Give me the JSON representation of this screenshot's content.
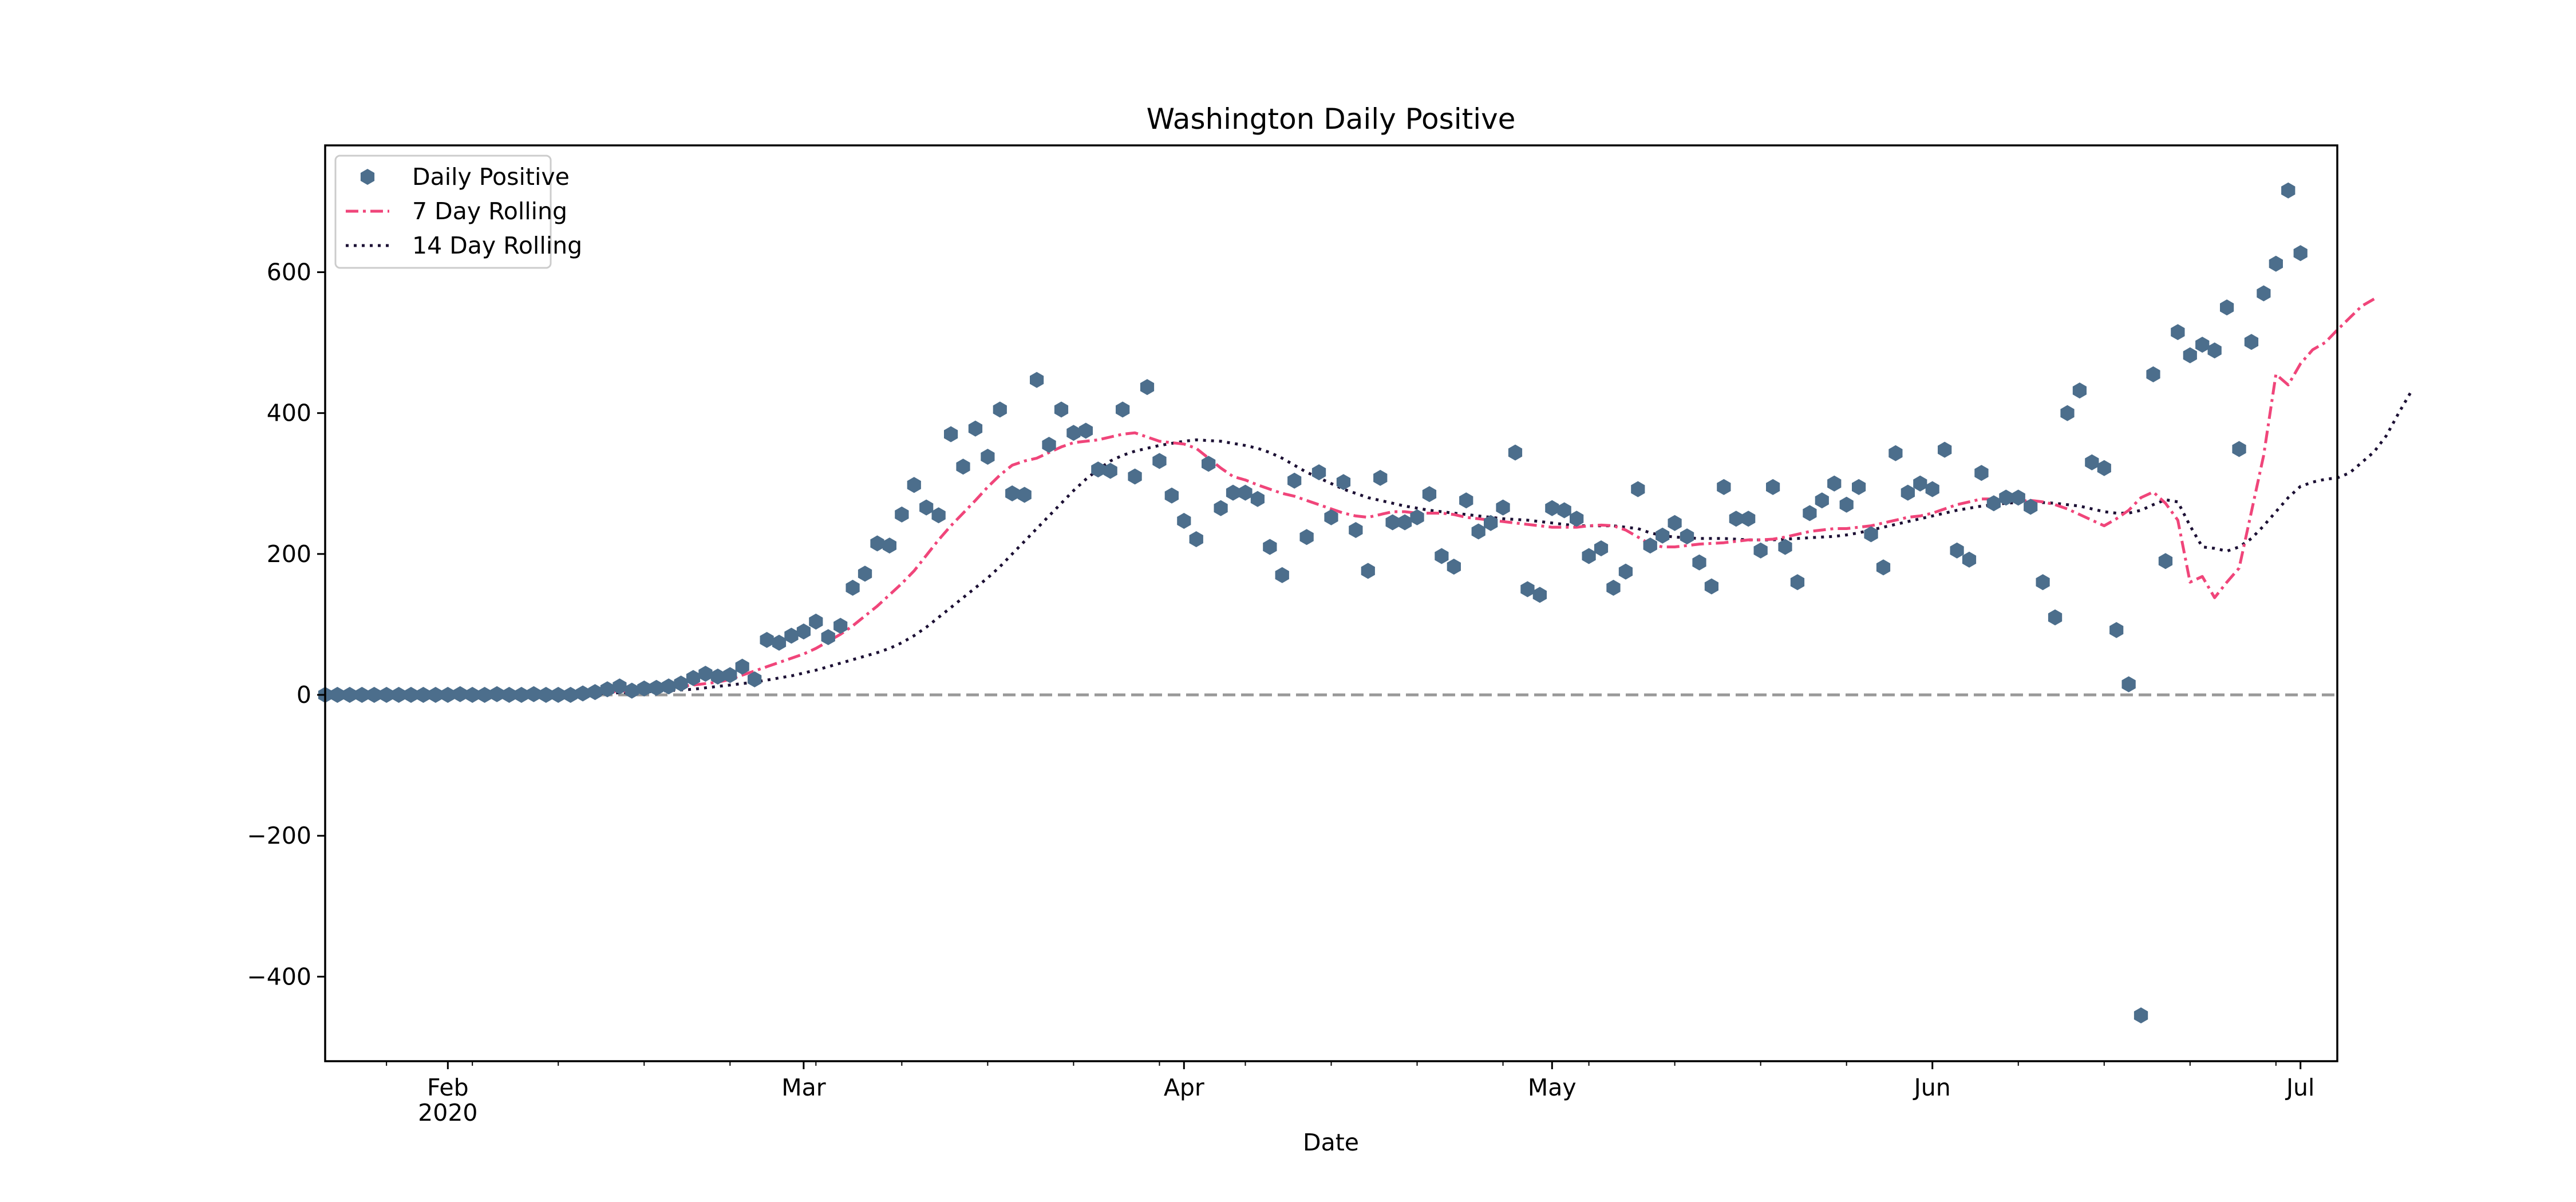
{
  "chart_data": {
    "type": "scatter",
    "title": "Washington Daily Positive",
    "xlabel": "Date",
    "ylabel": "",
    "xlim": [
      "2020-01-22",
      "2020-07-04"
    ],
    "ylim": [
      -520,
      780
    ],
    "x_ticks": [
      {
        "date": "2020-02-01",
        "label": "Feb",
        "sublabel": "2020"
      },
      {
        "date": "2020-03-01",
        "label": "Mar",
        "sublabel": ""
      },
      {
        "date": "2020-04-01",
        "label": "Apr",
        "sublabel": ""
      },
      {
        "date": "2020-05-01",
        "label": "May",
        "sublabel": ""
      },
      {
        "date": "2020-06-01",
        "label": "Jun",
        "sublabel": ""
      },
      {
        "date": "2020-07-01",
        "label": "Jul",
        "sublabel": ""
      }
    ],
    "y_ticks": [
      {
        "value": -400,
        "label": "−400"
      },
      {
        "value": -200,
        "label": "−200"
      },
      {
        "value": 0,
        "label": "0"
      },
      {
        "value": 200,
        "label": "200"
      },
      {
        "value": 400,
        "label": "400"
      },
      {
        "value": 600,
        "label": "600"
      }
    ],
    "zero_line": {
      "value": 0,
      "color": "#999999",
      "style": "dashed"
    },
    "grid": false,
    "legend_position": "upper-left",
    "series": [
      {
        "name": "Daily Positive",
        "kind": "points",
        "marker": "hexagon",
        "color": "#4c6e8c",
        "start_date": "2020-01-22",
        "values": [
          0,
          0,
          0,
          0,
          0,
          0,
          0,
          0,
          0,
          0,
          0,
          1,
          0,
          0,
          1,
          0,
          0,
          1,
          0,
          0,
          0,
          2,
          4,
          8,
          12,
          6,
          9,
          10,
          12,
          16,
          24,
          30,
          26,
          28,
          40,
          22,
          78,
          74,
          84,
          90,
          104,
          82,
          98,
          152,
          172,
          215,
          212,
          256,
          298,
          266,
          255,
          370,
          324,
          378,
          338,
          405,
          286,
          284,
          447,
          355,
          405,
          372,
          375,
          320,
          318,
          405,
          310,
          437,
          332,
          283,
          247,
          221,
          328,
          265,
          287,
          287,
          278,
          210,
          170,
          304,
          224,
          316,
          252,
          302,
          234,
          176,
          308,
          245,
          245,
          252,
          285,
          197,
          182,
          276,
          232,
          244,
          266,
          344,
          150,
          142,
          265,
          262,
          250,
          197,
          208,
          152,
          175,
          292,
          212,
          226,
          244,
          225,
          188,
          154,
          295,
          250,
          250,
          205,
          295,
          210,
          160,
          258,
          276,
          300,
          270,
          295,
          228,
          181,
          343,
          287,
          300,
          292,
          348,
          205,
          192,
          315,
          272,
          280,
          280,
          267,
          160,
          110,
          400,
          432,
          330,
          322,
          92,
          15,
          -455,
          455,
          190,
          515,
          482,
          497,
          489,
          550,
          349,
          501,
          570,
          612,
          716,
          627
        ]
      },
      {
        "name": "7 Day Rolling",
        "kind": "line",
        "dash": "dashdot",
        "color": "#f0457a",
        "start_date": "2020-02-01",
        "values": [
          0,
          0,
          0,
          0,
          0,
          0,
          0,
          0,
          1,
          1,
          1,
          2,
          3,
          4,
          5,
          6,
          7,
          8,
          10,
          12,
          14,
          16,
          18,
          22,
          28,
          34,
          40,
          46,
          52,
          58,
          66,
          76,
          86,
          98,
          112,
          126,
          142,
          158,
          176,
          198,
          220,
          240,
          258,
          276,
          295,
          312,
          326,
          332,
          336,
          344,
          352,
          358,
          360,
          362,
          366,
          370,
          372,
          366,
          360,
          358,
          356,
          350,
          336,
          322,
          310,
          305,
          298,
          292,
          286,
          282,
          276,
          270,
          264,
          258,
          254,
          252,
          256,
          260,
          260,
          258,
          258,
          258,
          256,
          252,
          250,
          248,
          246,
          244,
          242,
          240,
          238,
          238,
          238,
          240,
          241,
          240,
          234,
          224,
          214,
          210,
          210,
          212,
          214,
          215,
          216,
          218,
          220,
          220,
          221,
          224,
          228,
          232,
          234,
          236,
          236,
          238,
          240,
          244,
          248,
          252,
          254,
          258,
          264,
          270,
          274,
          278,
          278,
          277,
          275,
          276,
          274,
          270,
          264,
          256,
          248,
          240,
          250,
          262,
          280,
          288,
          272,
          248,
          160,
          168,
          138,
          160,
          180,
          260,
          340,
          455,
          440,
          470,
          490,
          500,
          518,
          535,
          552,
          562
        ]
      },
      {
        "name": "14 Day Rolling",
        "kind": "line",
        "dash": "dotted",
        "color": "#1c1034",
        "start_date": "2020-02-01",
        "values": [
          0,
          0,
          0,
          0,
          0,
          0,
          0,
          0,
          0,
          1,
          1,
          1,
          2,
          2,
          3,
          3,
          4,
          5,
          6,
          7,
          8,
          10,
          12,
          14,
          16,
          18,
          21,
          24,
          27,
          31,
          35,
          40,
          45,
          50,
          55,
          60,
          66,
          74,
          84,
          96,
          110,
          124,
          138,
          152,
          166,
          182,
          200,
          218,
          236,
          254,
          272,
          290,
          306,
          320,
          332,
          340,
          346,
          350,
          354,
          357,
          360,
          362,
          361,
          360,
          357,
          354,
          350,
          344,
          336,
          326,
          316,
          308,
          300,
          292,
          286,
          280,
          276,
          272,
          268,
          265,
          262,
          260,
          258,
          256,
          254,
          252,
          250,
          249,
          248,
          246,
          244,
          242,
          240,
          240,
          240,
          240,
          238,
          236,
          230,
          226,
          224,
          223,
          222,
          222,
          222,
          221,
          220,
          220,
          220,
          221,
          222,
          223,
          224,
          225,
          227,
          230,
          234,
          238,
          242,
          246,
          250,
          254,
          258,
          262,
          265,
          268,
          270,
          272,
          273,
          274,
          273,
          272,
          270,
          268,
          264,
          260,
          258,
          258,
          262,
          270,
          277,
          274,
          240,
          210,
          208,
          204,
          210,
          222,
          240,
          260,
          280,
          296,
          302,
          306,
          308,
          315,
          330,
          345,
          368,
          400,
          430
        ]
      }
    ]
  }
}
